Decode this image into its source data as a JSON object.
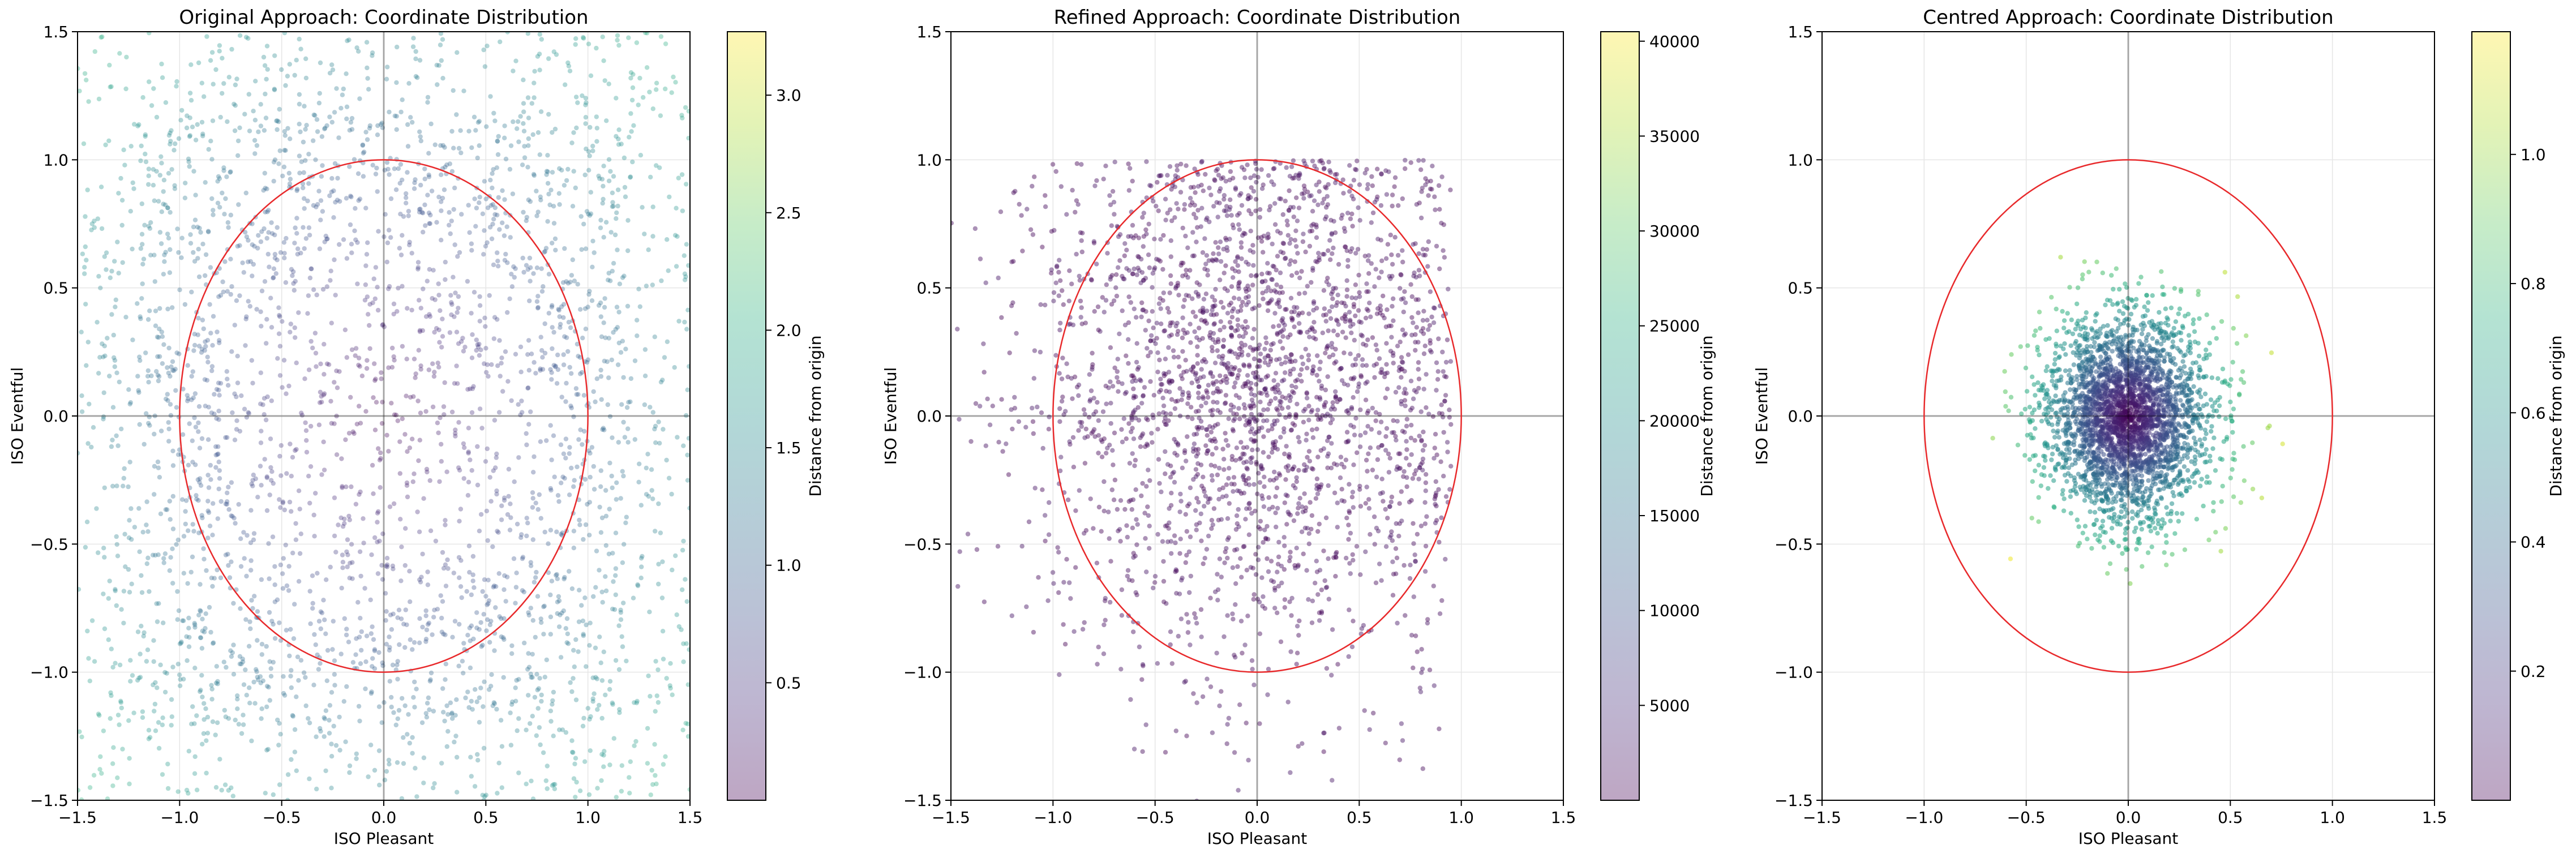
{
  "chart_data": [
    {
      "type": "scatter",
      "title": "Original Approach: Coordinate Distribution",
      "xlabel": "ISO Pleasant",
      "ylabel": "ISO Eventful",
      "xlim": [
        -1.5,
        1.5
      ],
      "ylim": [
        -1.5,
        1.5
      ],
      "xticks": [
        "−1.5",
        "−1.0",
        "−0.5",
        "0.0",
        "0.5",
        "1.0",
        "1.5"
      ],
      "yticks": [
        "−1.5",
        "−1.0",
        "−0.5",
        "0.0",
        "0.5",
        "1.0",
        "1.5"
      ],
      "grid": true,
      "reference_circle": {
        "center": [
          0,
          0
        ],
        "radius": 1,
        "color": "#e8292b"
      },
      "colorbar": {
        "label": "Distance from origin",
        "min": 0.0,
        "max": 3.27,
        "ticks": [
          0.5,
          1.0,
          1.5,
          2.0,
          2.5,
          3.0
        ],
        "tick_labels": [
          "0.5",
          "1.0",
          "1.5",
          "2.0",
          "2.5",
          "3.0"
        ],
        "colormap": "viridis"
      },
      "distribution": {
        "kind": "uniform-box",
        "n_points": 3000,
        "range": 1.5
      },
      "point_alpha": 0.35
    },
    {
      "type": "scatter",
      "title": "Refined Approach: Coordinate Distribution",
      "xlabel": "ISO Pleasant",
      "ylabel": "ISO Eventful",
      "xlim": [
        -1.5,
        1.5
      ],
      "ylim": [
        -1.5,
        1.5
      ],
      "xticks": [
        "−1.5",
        "−1.0",
        "−0.5",
        "0.0",
        "0.5",
        "1.0",
        "1.5"
      ],
      "yticks": [
        "−1.5",
        "−1.0",
        "−0.5",
        "0.0",
        "0.5",
        "1.0",
        "1.5"
      ],
      "grid": true,
      "reference_circle": {
        "center": [
          0,
          0
        ],
        "radius": 1,
        "color": "#e8292b"
      },
      "colorbar": {
        "label": "Distance from origin",
        "min": 0,
        "max": 40500,
        "ticks": [
          5000,
          10000,
          15000,
          20000,
          25000,
          30000,
          35000,
          40000
        ],
        "tick_labels": [
          "5000",
          "10000",
          "15000",
          "20000",
          "25000",
          "30000",
          "35000",
          "40000"
        ],
        "colormap": "viridis"
      },
      "distribution": {
        "kind": "skewed-cloud",
        "n_points": 2600,
        "mean_x": 0.0,
        "mean_y": 0.15,
        "sd": 0.55
      },
      "point_alpha": 0.45
    },
    {
      "type": "scatter",
      "title": "Centred Approach: Coordinate Distribution",
      "xlabel": "ISO Pleasant",
      "ylabel": "ISO Eventful",
      "xlim": [
        -1.5,
        1.5
      ],
      "ylim": [
        -1.5,
        1.5
      ],
      "xticks": [
        "−1.5",
        "−1.0",
        "−0.5",
        "0.0",
        "0.5",
        "1.0",
        "1.5"
      ],
      "yticks": [
        "−1.5",
        "−1.0",
        "−0.5",
        "0.0",
        "0.5",
        "1.0",
        "1.5"
      ],
      "grid": true,
      "reference_circle": {
        "center": [
          0,
          0
        ],
        "radius": 1,
        "color": "#e8292b"
      },
      "colorbar": {
        "label": "Distance from origin",
        "min": 0.0,
        "max": 1.19,
        "ticks": [
          0.2,
          0.4,
          0.6,
          0.8,
          1.0
        ],
        "tick_labels": [
          "0.2",
          "0.4",
          "0.6",
          "0.8",
          "1.0"
        ],
        "colormap": "viridis"
      },
      "distribution": {
        "kind": "gaussian",
        "n_points": 3000,
        "mean_x": 0.0,
        "mean_y": 0.0,
        "sd": 0.2
      },
      "point_alpha": 0.55
    }
  ]
}
